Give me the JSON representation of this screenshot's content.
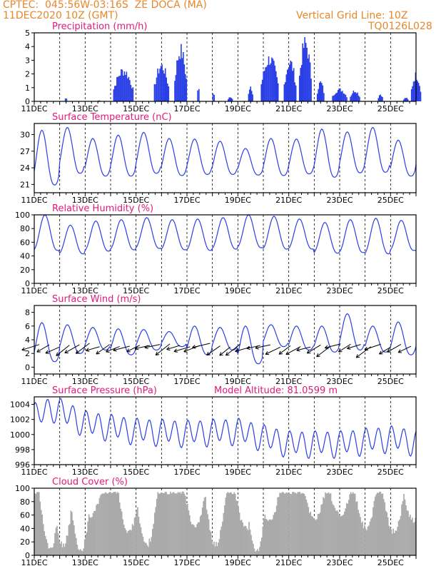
{
  "header": {
    "line1": "CPTEC:  045:56W-03:16S  ZE DOCA (MA)",
    "line2": "11DEC2020 10Z (GMT)",
    "right1": "Vertical Grid Line: 10Z",
    "right2": "TQ0126L028"
  },
  "colors": {
    "header": "#e8862a",
    "title": "#e0197d",
    "series": "#2a3fe6",
    "cloud": "#aaaaaa"
  },
  "chart_data": [
    {
      "type": "bar",
      "title": "Precipitation (mm/h)",
      "ylim": [
        0,
        5
      ],
      "yticks": [
        0,
        1,
        2,
        3,
        4,
        5
      ],
      "x_labels": [
        "11DEC",
        "13DEC",
        "15DEC",
        "17DEC",
        "19DEC",
        "21DEC",
        "23DEC",
        "25DEC"
      ],
      "clusters": [
        {
          "start_day": 1.2,
          "end_day": 1.3,
          "peak": 0.3
        },
        {
          "start_day": 2.5,
          "end_day": 2.6,
          "peak": 0.1
        },
        {
          "start_day": 3.1,
          "end_day": 3.9,
          "peak": 2.6
        },
        {
          "start_day": 4.7,
          "end_day": 5.3,
          "peak": 3.0
        },
        {
          "start_day": 5.5,
          "end_day": 6.0,
          "peak": 4.3
        },
        {
          "start_day": 6.4,
          "end_day": 6.5,
          "peak": 1.2
        },
        {
          "start_day": 7.0,
          "end_day": 7.1,
          "peak": 0.8
        },
        {
          "start_day": 7.6,
          "end_day": 7.8,
          "peak": 0.4
        },
        {
          "start_day": 8.4,
          "end_day": 8.6,
          "peak": 1.1
        },
        {
          "start_day": 8.9,
          "end_day": 9.6,
          "peak": 3.6
        },
        {
          "start_day": 9.8,
          "end_day": 10.3,
          "peak": 3.3
        },
        {
          "start_day": 10.4,
          "end_day": 10.9,
          "peak": 4.9
        },
        {
          "start_day": 11.1,
          "end_day": 11.4,
          "peak": 1.6
        },
        {
          "start_day": 11.7,
          "end_day": 12.3,
          "peak": 1.0
        },
        {
          "start_day": 12.4,
          "end_day": 12.8,
          "peak": 0.9
        },
        {
          "start_day": 13.5,
          "end_day": 13.7,
          "peak": 0.6
        },
        {
          "start_day": 14.5,
          "end_day": 14.7,
          "peak": 0.3
        },
        {
          "start_day": 14.8,
          "end_day": 15.2,
          "peak": 2.2
        }
      ]
    },
    {
      "type": "line",
      "title": "Surface Temperature (nC)",
      "ylim": [
        19.5,
        32
      ],
      "yticks": [
        21,
        24,
        27,
        30
      ],
      "x_labels": [
        "11DEC",
        "13DEC",
        "15DEC",
        "17DEC",
        "19DEC",
        "21DEC",
        "23DEC",
        "25DEC"
      ],
      "daily_min": [
        20.9,
        23.0,
        22.5,
        22.5,
        23.0,
        22.6,
        22.8,
        22.8,
        22.7,
        22.6,
        22.9,
        22.3,
        23.1,
        23.2,
        22.5,
        23.0
      ],
      "daily_max": [
        30.8,
        31.3,
        29.3,
        29.9,
        30.4,
        29.3,
        29.2,
        28.8,
        27.5,
        29.3,
        29.2,
        31.0,
        30.5,
        31.3,
        29.0,
        29.6
      ]
    },
    {
      "type": "line",
      "title": "Relative Humidity (%)",
      "ylim": [
        0,
        100
      ],
      "yticks": [
        0,
        20,
        40,
        60,
        80,
        100
      ],
      "x_labels": [
        "11DEC",
        "13DEC",
        "15DEC",
        "17DEC",
        "19DEC",
        "21DEC",
        "23DEC",
        "25DEC"
      ],
      "daily_min": [
        48,
        43,
        47,
        49,
        51,
        49,
        48,
        50,
        52,
        50,
        50,
        44,
        45,
        43,
        48,
        47
      ],
      "daily_max": [
        100,
        85,
        91,
        93,
        96,
        93,
        94,
        96,
        100,
        98,
        94,
        89,
        93,
        95,
        92,
        87
      ]
    },
    {
      "type": "line",
      "title": "Surface Wind (m/s)",
      "ylim": [
        -1,
        9
      ],
      "yticks": [
        0,
        2,
        4,
        6,
        8
      ],
      "x_labels": [
        "11DEC",
        "13DEC",
        "15DEC",
        "17DEC",
        "19DEC",
        "21DEC",
        "23DEC",
        "25DEC"
      ],
      "daily_min": [
        0.8,
        2.0,
        2.5,
        1.8,
        2.5,
        3.0,
        1.8,
        2.5,
        0.5,
        3.0,
        2.5,
        2.2,
        2.5,
        2.2,
        1.8,
        1.8
      ],
      "daily_max": [
        6.5,
        6.2,
        5.8,
        5.6,
        5.5,
        5.2,
        6.0,
        5.8,
        6.0,
        6.2,
        6.0,
        6.0,
        7.8,
        6.0,
        6.6,
        6.8
      ],
      "vector_count": 38
    },
    {
      "type": "line",
      "title": "Surface Pressure (hPa)",
      "annotation": "Model Altitude: 81.0599 m",
      "ylim": [
        996,
        1005
      ],
      "yticks": [
        996,
        998,
        1000,
        1002,
        1004
      ],
      "x_labels": [
        "11DEC",
        "13DEC",
        "15DEC",
        "17DEC",
        "19DEC",
        "21DEC",
        "23DEC",
        "25DEC"
      ],
      "trend": [
        [
          0,
          1002.5
        ],
        [
          0.8,
          1003.5
        ],
        [
          2,
          1001.5
        ],
        [
          4,
          1000.5
        ],
        [
          6,
          1000.2
        ],
        [
          8,
          1000.5
        ],
        [
          10,
          998.8
        ],
        [
          12,
          998.8
        ],
        [
          14,
          999.5
        ],
        [
          15,
          999.0
        ]
      ]
    },
    {
      "type": "bar",
      "title": "Cloud Cover (%)",
      "ylim": [
        0,
        100
      ],
      "yticks": [
        0,
        20,
        40,
        60,
        80,
        100
      ],
      "x_labels": [
        "11DEC",
        "13DEC",
        "15DEC",
        "17DEC",
        "19DEC",
        "21DEC",
        "23DEC",
        "25DEC"
      ],
      "typical_level": 95,
      "low_points": [
        [
          0.6,
          5
        ],
        [
          1.1,
          10
        ],
        [
          1.8,
          0
        ],
        [
          2.2,
          55
        ],
        [
          3.7,
          30
        ],
        [
          4.4,
          10
        ],
        [
          6.3,
          40
        ],
        [
          7.1,
          10
        ],
        [
          8.3,
          35
        ],
        [
          8.7,
          0
        ],
        [
          9.2,
          45
        ],
        [
          11.0,
          50
        ],
        [
          12.0,
          55
        ],
        [
          13.0,
          35
        ],
        [
          14.1,
          30
        ],
        [
          14.9,
          45
        ]
      ]
    }
  ]
}
